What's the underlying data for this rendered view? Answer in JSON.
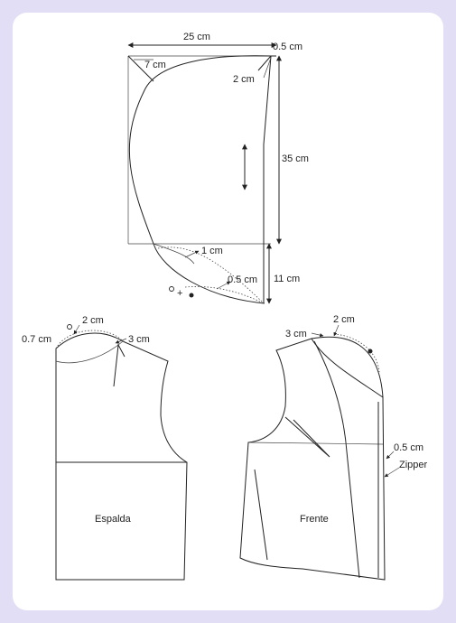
{
  "colors": {
    "frame": "#e2def5",
    "card": "#ffffff",
    "ink": "#222222"
  },
  "hood": {
    "width_label": "25 cm",
    "corner_left_label": "7 cm",
    "corner_right_label": "0.5 cm",
    "dart_label": "2 cm",
    "height_label": "35 cm",
    "neck_label_1": "1 cm",
    "neck_label_2": "0.5 cm",
    "neck_height_label": "11 cm"
  },
  "back": {
    "shoulder_left_label": "0.7 cm",
    "neck_label": "2 cm",
    "dart_label": "3 cm",
    "name": "Espalda"
  },
  "front": {
    "neck_label": "2 cm",
    "shoulder_label": "3 cm",
    "edge_label": "0.5 cm",
    "zipper_label": "Zipper",
    "name": "Frente"
  }
}
